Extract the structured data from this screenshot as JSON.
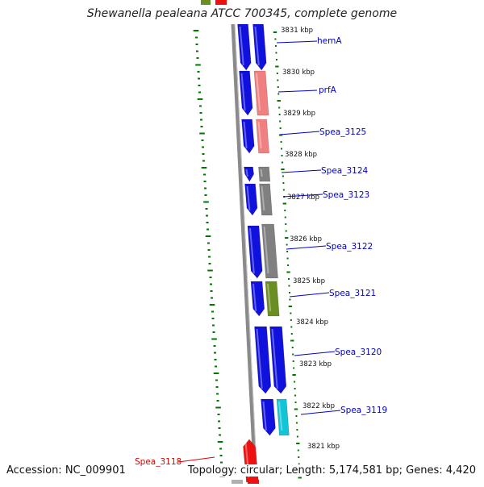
{
  "title": "Shewanella pealeana ATCC 700345, complete genome",
  "footer": {
    "accession": "Accession: NC_009901",
    "topology": "Topology: circular; Length: 5,174,581 bp; Genes: 4,420"
  },
  "colors": {
    "background": "#ffffff",
    "forward_gene": "#1111dd",
    "rna_gene": "#f08080",
    "uncharacterized_gene": "#808080",
    "olive_gene": "#6b8e23",
    "cyan_gene": "#11c4d6",
    "highlight_gene": "#ee1111",
    "tick": "#007700",
    "label_line": "#0000cc",
    "highlight_label": "#dd0000"
  },
  "ticks": [
    {
      "label": "3831 kbp"
    },
    {
      "label": "3830 kbp"
    },
    {
      "label": "3829 kbp"
    },
    {
      "label": "3828 kbp"
    },
    {
      "label": "3827 kbp"
    },
    {
      "label": "3826 kbp"
    },
    {
      "label": "3825 kbp"
    },
    {
      "label": "3824 kbp"
    },
    {
      "label": "3823 kbp"
    },
    {
      "label": "3822 kbp"
    },
    {
      "label": "3821 kbp"
    }
  ],
  "gene_labels": [
    {
      "name": "hemA",
      "color": "#0000cc"
    },
    {
      "name": "prfA",
      "color": "#0000cc"
    },
    {
      "name": "Spea_3125",
      "color": "#0000cc"
    },
    {
      "name": "Spea_3124",
      "color": "#0000cc"
    },
    {
      "name": "Spea_3123",
      "color": "#0000cc"
    },
    {
      "name": "Spea_3122",
      "color": "#0000cc"
    },
    {
      "name": "Spea_3121",
      "color": "#0000cc"
    },
    {
      "name": "Spea_3120",
      "color": "#0000cc"
    },
    {
      "name": "Spea_3119",
      "color": "#0000cc"
    },
    {
      "name": "Spea_3118",
      "color": "#dd0000"
    }
  ]
}
